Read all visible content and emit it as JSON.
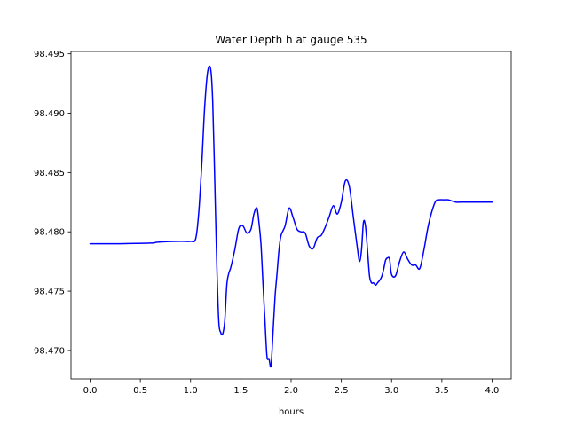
{
  "chart_data": {
    "type": "line",
    "title": "Water Depth h at gauge 535",
    "xlabel": "hours",
    "ylabel": "",
    "xlim": [
      -0.19,
      4.19
    ],
    "ylim": [
      98.4676,
      98.4952
    ],
    "x_ticks": [
      0.0,
      0.5,
      1.0,
      1.5,
      2.0,
      2.5,
      3.0,
      3.5,
      4.0
    ],
    "x_tick_labels": [
      "0.0",
      "0.5",
      "1.0",
      "1.5",
      "2.0",
      "2.5",
      "3.0",
      "3.5",
      "4.0"
    ],
    "y_ticks": [
      98.47,
      98.475,
      98.48,
      98.485,
      98.49,
      98.495
    ],
    "y_tick_labels": [
      "98.470",
      "98.475",
      "98.480",
      "98.485",
      "98.490",
      "98.495"
    ],
    "grid": false,
    "line_color": "#0000ff",
    "series": [
      {
        "x": [
          0.0,
          0.3,
          0.6,
          0.65,
          0.7,
          0.9,
          1.0,
          1.05,
          1.08,
          1.11,
          1.14,
          1.17,
          1.2,
          1.22,
          1.24,
          1.26,
          1.28,
          1.3,
          1.32,
          1.34,
          1.36,
          1.38,
          1.4,
          1.44,
          1.48,
          1.52,
          1.56,
          1.6,
          1.63,
          1.66,
          1.68,
          1.7,
          1.72,
          1.74,
          1.76,
          1.78,
          1.8,
          1.82,
          1.84,
          1.86,
          1.88,
          1.9,
          1.94,
          1.98,
          2.02,
          2.06,
          2.1,
          2.14,
          2.18,
          2.22,
          2.26,
          2.3,
          2.34,
          2.38,
          2.42,
          2.46,
          2.5,
          2.54,
          2.58,
          2.62,
          2.66,
          2.68,
          2.7,
          2.72,
          2.74,
          2.76,
          2.78,
          2.8,
          2.82,
          2.84,
          2.86,
          2.88,
          2.9,
          2.92,
          2.94,
          2.96,
          2.98,
          3.0,
          3.04,
          3.08,
          3.12,
          3.16,
          3.2,
          3.24,
          3.28,
          3.32,
          3.36,
          3.4,
          3.44,
          3.48,
          3.52,
          3.56,
          3.6,
          3.64,
          3.68,
          3.72,
          3.76,
          3.8,
          3.84,
          3.88,
          3.92,
          3.96,
          4.0
        ],
        "y": [
          98.479,
          98.479,
          98.47905,
          98.4791,
          98.47915,
          98.4792,
          98.4792,
          98.4794,
          98.4815,
          98.4855,
          98.4905,
          98.4935,
          98.4937,
          98.491,
          98.4845,
          98.4775,
          98.4725,
          98.4715,
          98.4714,
          98.4725,
          98.4755,
          98.4765,
          98.477,
          98.4785,
          98.4803,
          98.4805,
          98.4799,
          98.4802,
          98.4815,
          98.482,
          98.4808,
          98.479,
          98.4757,
          98.4725,
          98.4695,
          98.4693,
          98.4687,
          98.4715,
          98.4745,
          98.4765,
          98.4785,
          98.4797,
          98.4805,
          98.482,
          98.4812,
          98.4802,
          98.48,
          98.4799,
          98.4788,
          98.4786,
          98.4795,
          98.4797,
          98.4804,
          98.4813,
          98.4822,
          98.4815,
          98.4825,
          98.4843,
          98.4838,
          98.4812,
          98.4786,
          98.4775,
          98.4784,
          98.4808,
          98.4805,
          98.4785,
          98.4763,
          98.4757,
          98.4757,
          98.4755,
          98.4757,
          98.4759,
          98.4762,
          98.4768,
          98.4776,
          98.4778,
          98.4777,
          98.4764,
          98.4763,
          98.4775,
          98.4783,
          98.4777,
          98.4772,
          98.4772,
          98.4769,
          98.4784,
          98.4803,
          98.4817,
          98.4826,
          98.4827,
          98.4827,
          98.4827,
          98.4826,
          98.4825,
          98.4825,
          98.4825,
          98.4825,
          98.4825,
          98.4825,
          98.4825,
          98.4825,
          98.4825,
          98.4825
        ]
      }
    ]
  }
}
